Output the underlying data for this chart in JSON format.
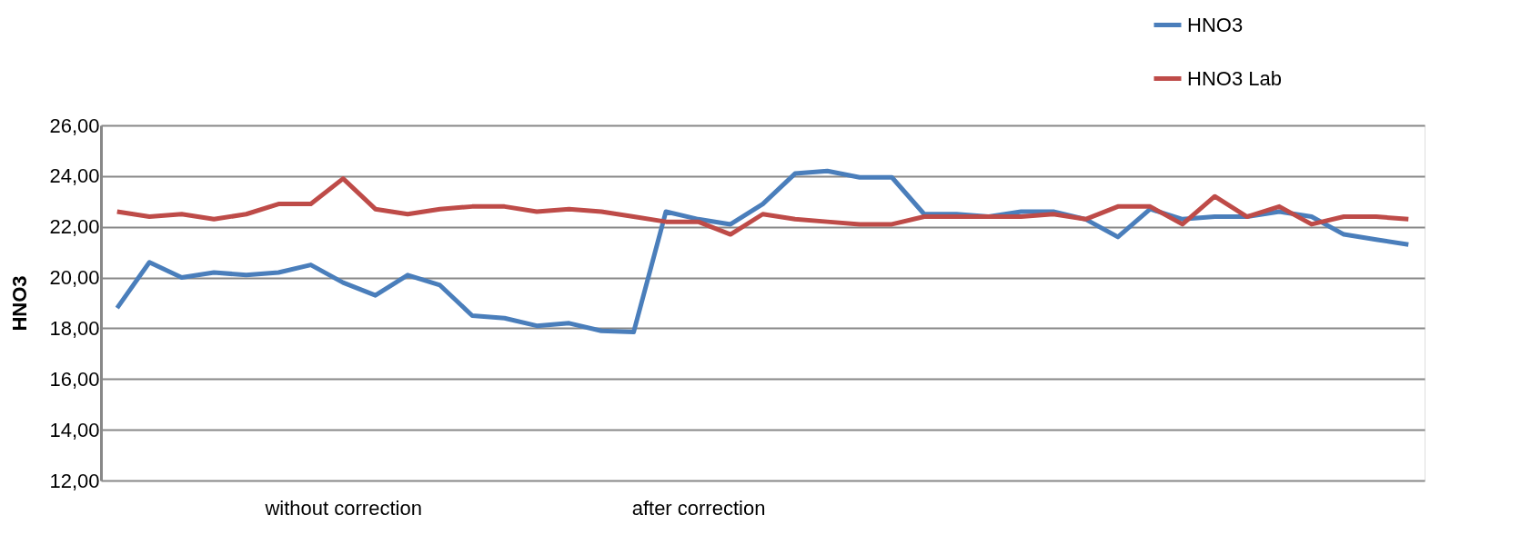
{
  "chart_data": {
    "type": "line",
    "ylabel": "HNO3",
    "categories": [
      null,
      null,
      null,
      null,
      null,
      null,
      null,
      "without correction",
      null,
      null,
      null,
      null,
      null,
      null,
      null,
      null,
      null,
      null,
      "after correction",
      null,
      null,
      null,
      null,
      null,
      null,
      null,
      null,
      null,
      null,
      null,
      null,
      null,
      null,
      null,
      null,
      null,
      null,
      null,
      null,
      null,
      null
    ],
    "series": [
      {
        "name": "HNO3",
        "color": "#4a7ebb",
        "values": [
          18.8,
          20.6,
          20.0,
          20.2,
          20.1,
          20.2,
          20.5,
          19.8,
          19.3,
          20.1,
          19.7,
          18.5,
          18.4,
          18.1,
          18.2,
          17.9,
          17.85,
          22.6,
          22.3,
          22.1,
          22.9,
          24.1,
          24.2,
          23.95,
          23.95,
          22.5,
          22.5,
          22.4,
          22.6,
          22.6,
          22.3,
          21.6,
          22.7,
          22.3,
          22.4,
          22.4,
          22.6,
          22.4,
          21.7,
          21.5,
          21.3
        ]
      },
      {
        "name": "HNO3 Lab",
        "color": "#be4b48",
        "values": [
          22.6,
          22.4,
          22.5,
          22.3,
          22.5,
          22.9,
          22.9,
          23.9,
          22.7,
          22.5,
          22.7,
          22.8,
          22.8,
          22.6,
          22.7,
          22.6,
          22.4,
          22.2,
          22.2,
          21.7,
          22.5,
          22.3,
          22.2,
          22.1,
          22.1,
          22.4,
          22.4,
          22.4,
          22.4,
          22.5,
          22.3,
          22.8,
          22.8,
          22.1,
          23.2,
          22.4,
          22.8,
          22.1,
          22.4,
          22.4,
          22.3
        ]
      }
    ],
    "ylim": [
      12,
      26
    ],
    "yticks": [
      {
        "value": 12,
        "label": "12,00"
      },
      {
        "value": 14,
        "label": "14,00"
      },
      {
        "value": 16,
        "label": "16,00"
      },
      {
        "value": 18,
        "label": "18,00"
      },
      {
        "value": 20,
        "label": "20,00"
      },
      {
        "value": 22,
        "label": "22,00"
      },
      {
        "value": 24,
        "label": "24,00"
      },
      {
        "value": 26,
        "label": "26,00"
      }
    ],
    "grid": "y",
    "legend": "top right",
    "marker": "none",
    "line_style": "solid"
  }
}
